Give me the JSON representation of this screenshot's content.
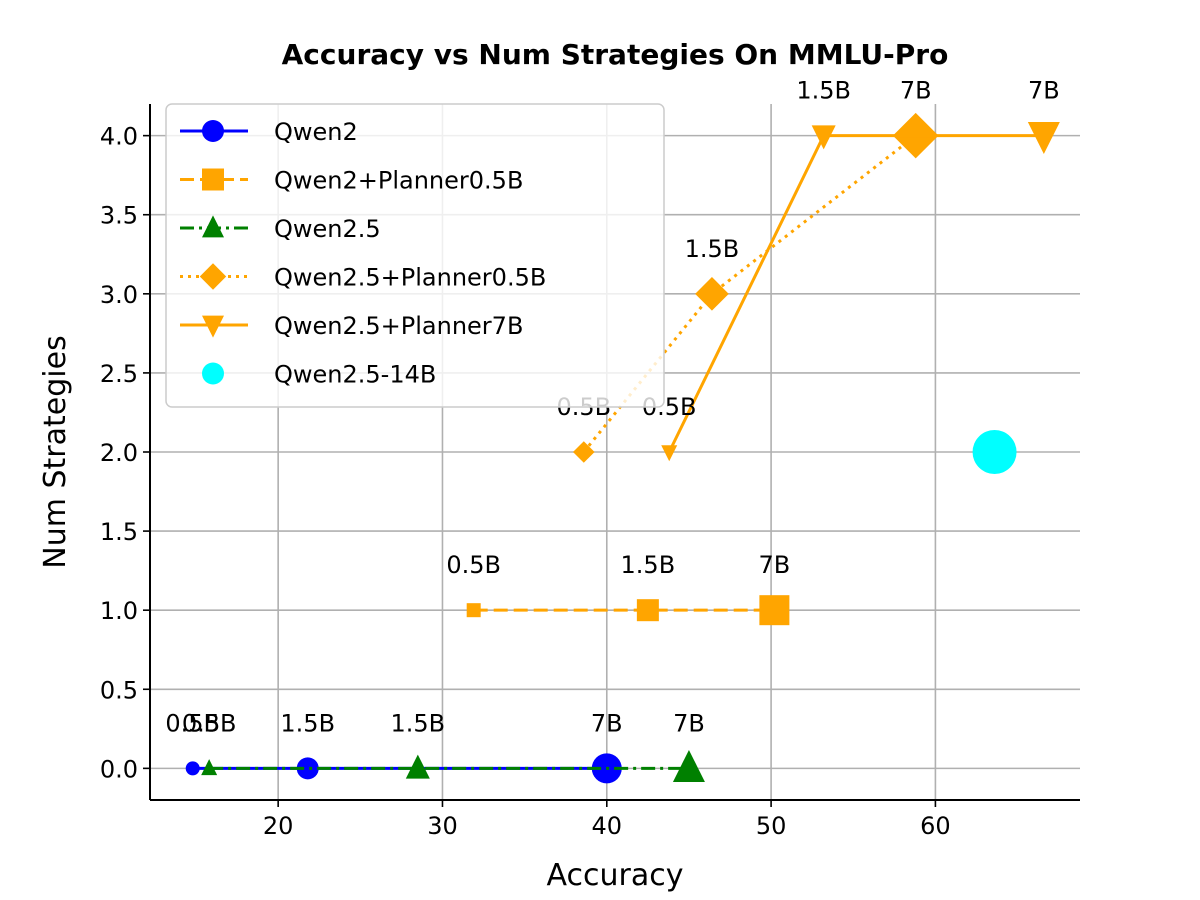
{
  "chart_data": {
    "type": "line",
    "title": "Accuracy vs Num Strategies On MMLU-Pro",
    "xlabel": "Accuracy",
    "ylabel": "Num Strategies",
    "xlim": [
      12.2,
      68.8
    ],
    "ylim": [
      -0.2,
      4.2
    ],
    "xticks": [
      20,
      30,
      40,
      50,
      60
    ],
    "yticks": [
      0.0,
      0.5,
      1.0,
      1.5,
      2.0,
      2.5,
      3.0,
      3.5,
      4.0
    ],
    "xtick_labels": [
      "20",
      "30",
      "40",
      "50",
      "60"
    ],
    "ytick_labels": [
      "0.0",
      "0.5",
      "1.0",
      "1.5",
      "2.0",
      "2.5",
      "3.0",
      "3.5",
      "4.0"
    ],
    "grid": true,
    "legend_position": "upper left",
    "series": [
      {
        "name": "Qwen2",
        "color": "#0000ff",
        "marker": "circle",
        "linestyle": "solid",
        "points": [
          {
            "x": 14.8,
            "y": 0,
            "label": "0.5B",
            "size": 7
          },
          {
            "x": 21.8,
            "y": 0,
            "label": "1.5B",
            "size": 11
          },
          {
            "x": 40.0,
            "y": 0,
            "label": "7B",
            "size": 15
          }
        ]
      },
      {
        "name": "Qwen2+Planner0.5B",
        "color": "#ffa500",
        "marker": "square",
        "linestyle": "dashed",
        "points": [
          {
            "x": 31.9,
            "y": 1,
            "label": "0.5B",
            "size": 7
          },
          {
            "x": 42.5,
            "y": 1,
            "label": "1.5B",
            "size": 11
          },
          {
            "x": 50.2,
            "y": 1,
            "label": "7B",
            "size": 15
          }
        ]
      },
      {
        "name": "Qwen2.5",
        "color": "#008000",
        "marker": "triangle-up",
        "linestyle": "dashdot",
        "points": [
          {
            "x": 15.8,
            "y": 0,
            "label": "0.5B",
            "size": 8
          },
          {
            "x": 28.5,
            "y": 0,
            "label": "1.5B",
            "size": 12
          },
          {
            "x": 45.0,
            "y": 0,
            "label": "7B",
            "size": 16
          }
        ]
      },
      {
        "name": "Qwen2.5+Planner0.5B",
        "color": "#ffa500",
        "marker": "diamond",
        "linestyle": "dotted",
        "points": [
          {
            "x": 38.6,
            "y": 2,
            "label": "0.5B",
            "size": 9
          },
          {
            "x": 46.4,
            "y": 3,
            "label": "1.5B",
            "size": 14
          },
          {
            "x": 58.8,
            "y": 4,
            "label": "7B",
            "size": 19
          }
        ]
      },
      {
        "name": "Qwen2.5+Planner7B",
        "color": "#ffa500",
        "marker": "triangle-down",
        "linestyle": "solid",
        "points": [
          {
            "x": 43.8,
            "y": 2,
            "label": "0.5B",
            "size": 8
          },
          {
            "x": 53.2,
            "y": 4,
            "label": "1.5B",
            "size": 12
          },
          {
            "x": 66.6,
            "y": 4,
            "label": "7B",
            "size": 16
          }
        ]
      },
      {
        "name": "Qwen2.5-14B",
        "color": "#00ffff",
        "marker": "circle",
        "linestyle": "none",
        "points": [
          {
            "x": 63.6,
            "y": 2,
            "label": "",
            "size": 22
          }
        ]
      }
    ]
  }
}
